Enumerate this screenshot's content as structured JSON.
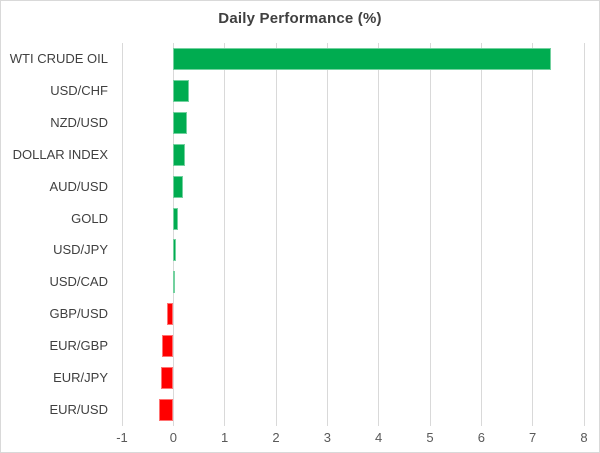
{
  "chart_data": {
    "type": "bar",
    "orientation": "horizontal",
    "title": "Daily Performance (%)",
    "categories": [
      "WTI CRUDE OIL",
      "USD/CHF",
      "NZD/USD",
      "DOLLAR INDEX",
      "AUD/USD",
      "GOLD",
      "USD/JPY",
      "USD/CAD",
      "GBP/USD",
      "EUR/GBP",
      "EUR/JPY",
      "EUR/USD"
    ],
    "values": [
      7.35,
      0.3,
      0.27,
      0.23,
      0.19,
      0.1,
      0.06,
      0.04,
      -0.12,
      -0.22,
      -0.25,
      -0.28
    ],
    "xlabel": "",
    "ylabel": "",
    "xlim": [
      -1,
      8
    ],
    "x_ticks": [
      -1,
      0,
      1,
      2,
      3,
      4,
      5,
      6,
      7,
      8
    ],
    "grid": true,
    "legend": false,
    "positive_color": "#00AC50",
    "negative_color": "#FF0000",
    "gridline_color": "#d9d9d9"
  }
}
